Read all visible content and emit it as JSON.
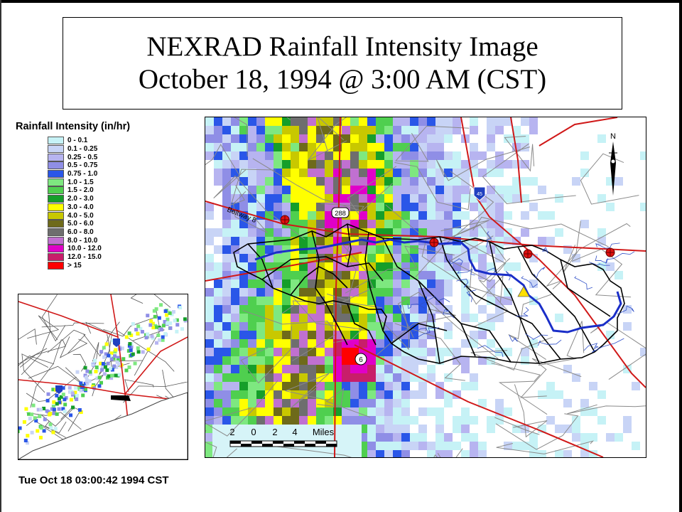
{
  "title": {
    "line1": "NEXRAD Rainfall Intensity Image",
    "line2": "October 18, 1994 @ 3:00 AM (CST)"
  },
  "legend": {
    "title": "Rainfall Intensity (in/hr)",
    "items": [
      {
        "label": "0 - 0.1",
        "color": "#c6f2f6"
      },
      {
        "label": "0.1 - 0.25",
        "color": "#c8d4f6"
      },
      {
        "label": "0.25 - 0.5",
        "color": "#b7b4f0"
      },
      {
        "label": "0.5 - 0.75",
        "color": "#8f8ee6"
      },
      {
        "label": "0.75 - 1.0",
        "color": "#2a56e8"
      },
      {
        "label": "1.0 - 1.5",
        "color": "#7ee880"
      },
      {
        "label": "1.5 - 2.0",
        "color": "#4fcf4f"
      },
      {
        "label": "2.0 - 3.0",
        "color": "#159e2a"
      },
      {
        "label": "3.0 - 4.0",
        "color": "#ffff00"
      },
      {
        "label": "4.0 - 5.0",
        "color": "#c8c800"
      },
      {
        "label": "5.0 - 6.0",
        "color": "#6e6a1a"
      },
      {
        "label": "6.0 - 8.0",
        "color": "#6e6e6e"
      },
      {
        "label": "8.0 - 10.0",
        "color": "#c070d0"
      },
      {
        "label": "10.0 - 12.0",
        "color": "#e000c8"
      },
      {
        "label": "12.0 - 15.0",
        "color": "#c81e6a"
      },
      {
        "label": "> 15",
        "color": "#ff0000"
      }
    ]
  },
  "map_labels": {
    "beltway": "Beltway 8",
    "highway_288": "288",
    "highway_6": "6",
    "interstate": "45",
    "north": "N",
    "scale_numbers": [
      "2",
      "0",
      "2",
      "4"
    ],
    "scale_unit": "Miles"
  },
  "timestamp": "Tue Oct 18 03:00:42 1994 CST"
}
